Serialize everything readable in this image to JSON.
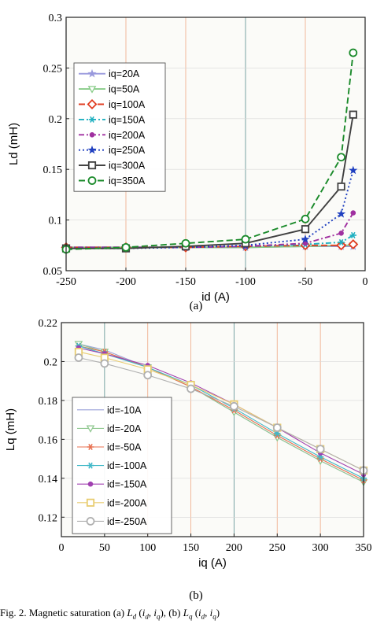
{
  "figure": {
    "label_a": "(a)",
    "label_b": "(b)",
    "caption": {
      "prefix": "Fig. 2.   Magnetic saturation (a) ",
      "a_sym": "L",
      "a_sub": "d",
      "a_args_open": " (",
      "a_arg1": "i",
      "a_arg1_sub": "d",
      "sep": ", ",
      "a_arg2": "i",
      "a_arg2_sub": "q",
      "mid": "), (b) ",
      "b_sym": "L",
      "b_sub": "q",
      "b_args_open": " (",
      "b_arg1": "i",
      "b_arg1_sub": "d",
      "b_arg2": "i",
      "b_arg2_sub": "q",
      "end": ")"
    }
  },
  "chart_data": [
    {
      "type": "line",
      "xlabel": "id (A)",
      "ylabel": "Ld (mH)",
      "xlim": [
        -250,
        0
      ],
      "ylim": [
        0.05,
        0.3
      ],
      "xticks": [
        -250,
        -200,
        -150,
        -100,
        -50,
        0
      ],
      "yticks": [
        0.05,
        0.1,
        0.15,
        0.2,
        0.25,
        0.3
      ],
      "xtick_labels": [
        "-250",
        "-200",
        "-150",
        "-100",
        "-50",
        "0"
      ],
      "ytick_labels": [
        "0.05",
        "0.1",
        "0.15",
        "0.2",
        "0.25",
        "0.3"
      ],
      "grid": true,
      "legend_position": "center-left",
      "x": [
        -250,
        -200,
        -150,
        -100,
        -50,
        -20,
        -10
      ],
      "series": [
        {
          "name": "iq=20A",
          "color": "#9999dd",
          "dash": "",
          "marker": "star",
          "values": [
            0.073,
            0.073,
            0.073,
            0.073,
            0.074,
            0.074,
            0.074
          ]
        },
        {
          "name": "iq=50A",
          "color": "#88cc88",
          "dash": "",
          "marker": "triangle-down",
          "values": [
            0.073,
            0.073,
            0.073,
            0.073,
            0.074,
            0.075,
            0.075
          ]
        },
        {
          "name": "iq=100A",
          "color": "#e03c20",
          "dash": "8,4",
          "marker": "diamond",
          "values": [
            0.073,
            0.073,
            0.073,
            0.074,
            0.075,
            0.075,
            0.076
          ]
        },
        {
          "name": "iq=150A",
          "color": "#20b0c0",
          "dash": "7,3,2,3",
          "marker": "asterisk",
          "values": [
            0.073,
            0.073,
            0.073,
            0.074,
            0.076,
            0.078,
            0.085
          ]
        },
        {
          "name": "iq=200A",
          "color": "#a030a0",
          "dash": "7,3,2,3",
          "marker": "dot",
          "values": [
            0.073,
            0.073,
            0.073,
            0.074,
            0.077,
            0.087,
            0.107
          ]
        },
        {
          "name": "iq=250A",
          "color": "#2040c0",
          "dash": "2,3",
          "marker": "star",
          "values": [
            0.072,
            0.072,
            0.073,
            0.075,
            0.081,
            0.106,
            0.149
          ]
        },
        {
          "name": "iq=300A",
          "color": "#404040",
          "dash": "",
          "marker": "square",
          "values": [
            0.072,
            0.072,
            0.074,
            0.077,
            0.091,
            0.133,
            0.204
          ]
        },
        {
          "name": "iq=350A",
          "color": "#1a8a2a",
          "dash": "8,4",
          "marker": "circle",
          "values": [
            0.071,
            0.073,
            0.077,
            0.081,
            0.101,
            0.162,
            0.265
          ]
        }
      ]
    },
    {
      "type": "line",
      "xlabel": "iq (A)",
      "ylabel": "Lq (mH)",
      "xlim": [
        0,
        350
      ],
      "ylim": [
        0.11,
        0.22
      ],
      "xticks": [
        0,
        50,
        100,
        150,
        200,
        250,
        300,
        350
      ],
      "yticks": [
        0.12,
        0.14,
        0.16,
        0.18,
        0.2,
        0.22
      ],
      "xtick_labels": [
        "0",
        "50",
        "100",
        "150",
        "200",
        "250",
        "300",
        "350"
      ],
      "ytick_labels": [
        "0.12",
        "0.14",
        "0.16",
        "0.18",
        "0.2",
        "0.22"
      ],
      "grid": true,
      "legend_position": "bottom-left",
      "x": [
        20,
        50,
        100,
        150,
        200,
        250,
        300,
        350
      ],
      "series": [
        {
          "name": "id=-10A",
          "color": "#9aa0d8",
          "dash": "",
          "marker": "none",
          "values": [
            0.209,
            0.206,
            0.197,
            0.187,
            0.174,
            0.161,
            0.149,
            0.138
          ]
        },
        {
          "name": "id=-20A",
          "color": "#90c890",
          "dash": "",
          "marker": "triangle-down",
          "values": [
            0.209,
            0.205,
            0.197,
            0.187,
            0.174,
            0.161,
            0.149,
            0.138
          ]
        },
        {
          "name": "id=-50A",
          "color": "#e87050",
          "dash": "",
          "marker": "asterisk",
          "values": [
            0.208,
            0.205,
            0.197,
            0.187,
            0.175,
            0.162,
            0.15,
            0.139
          ]
        },
        {
          "name": "id=-100A",
          "color": "#40b8c8",
          "dash": "",
          "marker": "asterisk",
          "values": [
            0.208,
            0.204,
            0.197,
            0.188,
            0.176,
            0.163,
            0.151,
            0.14
          ]
        },
        {
          "name": "id=-150A",
          "color": "#a040b0",
          "dash": "",
          "marker": "dot",
          "values": [
            0.207,
            0.204,
            0.198,
            0.189,
            0.178,
            0.166,
            0.153,
            0.142
          ]
        },
        {
          "name": "id=-200A",
          "color": "#e8cc70",
          "dash": "",
          "marker": "square",
          "values": [
            0.205,
            0.202,
            0.196,
            0.188,
            0.178,
            0.166,
            0.155,
            0.144
          ]
        },
        {
          "name": "id=-250A",
          "color": "#b0b0b0",
          "dash": "",
          "marker": "circle",
          "values": [
            0.202,
            0.199,
            0.193,
            0.186,
            0.177,
            0.166,
            0.155,
            0.144
          ]
        }
      ]
    }
  ]
}
